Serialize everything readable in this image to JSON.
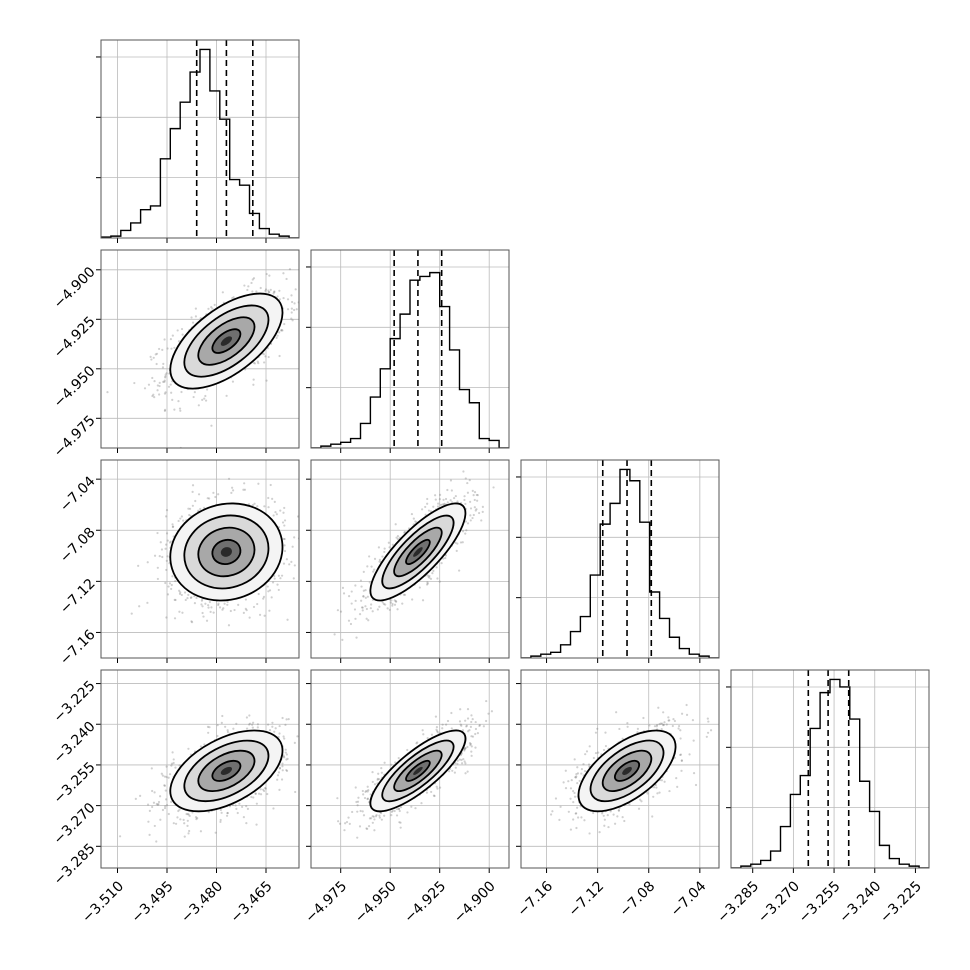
{
  "chart_data": {
    "type": "corner",
    "parameters": [
      {
        "range": [
          -3.515,
          -3.455
        ],
        "ticks": [
          -3.51,
          -3.495,
          -3.48,
          -3.465
        ],
        "tick_labels": [
          "−3.510",
          "−3.495",
          "−3.480",
          "−3.465"
        ],
        "median": -3.477,
        "q16": -3.486,
        "q84": -3.469,
        "hist": [
          0.005,
          0.01,
          0.04,
          0.08,
          0.15,
          0.17,
          0.42,
          0.58,
          0.72,
          0.88,
          1.0,
          0.78,
          0.63,
          0.31,
          0.28,
          0.13,
          0.05,
          0.02,
          0.01,
          0.0
        ]
      },
      {
        "range": [
          -4.99,
          -4.89
        ],
        "ticks": [
          -4.975,
          -4.95,
          -4.925,
          -4.9
        ],
        "tick_labels": [
          "−4.975",
          "−4.950",
          "−4.925",
          "−4.900"
        ],
        "median": -4.936,
        "q16": -4.948,
        "q84": -4.924,
        "hist": [
          0.0,
          0.01,
          0.02,
          0.03,
          0.05,
          0.13,
          0.27,
          0.42,
          0.58,
          0.71,
          0.89,
          0.91,
          0.93,
          0.75,
          0.52,
          0.31,
          0.24,
          0.05,
          0.04,
          0.0
        ]
      },
      {
        "range": [
          -7.18,
          -7.025
        ],
        "ticks": [
          -7.16,
          -7.12,
          -7.08,
          -7.04
        ],
        "tick_labels": [
          "−7.16",
          "−7.12",
          "−7.08",
          "−7.04"
        ],
        "median": -7.097,
        "q16": -7.116,
        "q84": -7.078,
        "hist": [
          0.0,
          0.01,
          0.02,
          0.03,
          0.07,
          0.14,
          0.22,
          0.44,
          0.71,
          0.82,
          1.0,
          0.94,
          0.72,
          0.35,
          0.21,
          0.11,
          0.05,
          0.02,
          0.01,
          0.0
        ]
      },
      {
        "range": [
          -3.293,
          -3.22
        ],
        "ticks": [
          -3.285,
          -3.27,
          -3.255,
          -3.24,
          -3.225
        ],
        "tick_labels": [
          "−3.285",
          "−3.270",
          "−3.255",
          "−3.240",
          "−3.225"
        ],
        "median": -3.2572,
        "q16": -3.2645,
        "q84": -3.2496,
        "hist": [
          0.0,
          0.01,
          0.02,
          0.04,
          0.09,
          0.22,
          0.39,
          0.49,
          0.74,
          0.93,
          1.0,
          0.96,
          0.79,
          0.46,
          0.3,
          0.12,
          0.05,
          0.02,
          0.01,
          0.0
        ]
      }
    ],
    "correlations": [
      [
        null,
        null,
        null,
        null
      ],
      [
        0.6,
        null,
        null,
        null
      ],
      [
        0.1,
        0.8,
        null,
        null
      ],
      [
        0.5,
        0.8,
        0.6,
        null
      ]
    ],
    "contour_levels_sigma": [
      0.5,
      1.0,
      1.5,
      2.0
    ],
    "grid": true,
    "title": "",
    "xlabel": "",
    "ylabel": ""
  }
}
